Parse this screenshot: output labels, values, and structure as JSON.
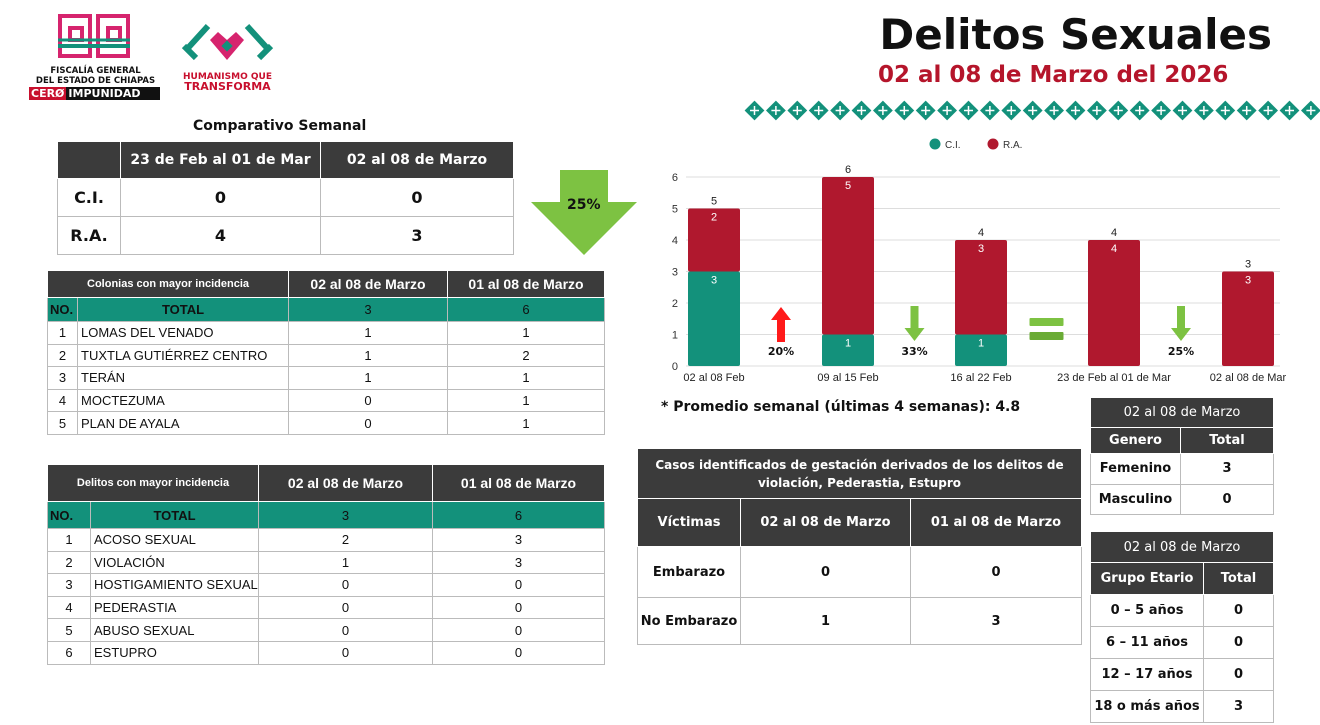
{
  "header": {
    "title": "Delitos Sexuales",
    "subtitle": "02 al 08 de Marzo del 2026",
    "logo1": [
      "FISCALÍA GENERAL",
      "DEL ESTADO DE CHIAPAS"
    ],
    "logo1_cero": "CERØ",
    "logo1_imp": "IMPUNIDAD",
    "logo2": [
      "HUMANISMO QUE",
      "TRANSFORMA"
    ]
  },
  "colors": {
    "teal": "#13917b",
    "red": "#b0182e",
    "dark": "#3b3b3b",
    "green": "#7dc242"
  },
  "comparativo": {
    "title": "Comparativo Semanal",
    "headers": [
      "",
      "23 de Feb al 01 de Mar",
      "02 al 08 de Marzo"
    ],
    "rows": [
      [
        "C.I.",
        "0",
        "0"
      ],
      [
        "R.A.",
        "4",
        "3"
      ]
    ],
    "change": "25%"
  },
  "colonias": {
    "headers": [
      "Colonias con mayor incidencia",
      "02 al 08 de Marzo",
      "01 al 08 de Marzo"
    ],
    "total": [
      "NO.",
      "TOTAL",
      "3",
      "6"
    ],
    "rows": [
      [
        "1",
        "LOMAS DEL VENADO",
        "1",
        "1"
      ],
      [
        "2",
        "TUXTLA GUTIÉRREZ CENTRO",
        "1",
        "2"
      ],
      [
        "3",
        "TERÁN",
        "1",
        "1"
      ],
      [
        "4",
        "MOCTEZUMA",
        "0",
        "1"
      ],
      [
        "5",
        "PLAN DE AYALA",
        "0",
        "1"
      ]
    ]
  },
  "delitos": {
    "headers": [
      "Delitos con mayor incidencia",
      "02 al 08 de Marzo",
      "01 al 08 de Marzo"
    ],
    "total": [
      "NO.",
      "TOTAL",
      "3",
      "6"
    ],
    "rows": [
      [
        "1",
        "ACOSO SEXUAL",
        "2",
        "3"
      ],
      [
        "2",
        "VIOLACIÓN",
        "1",
        "3"
      ],
      [
        "3",
        "HOSTIGAMIENTO SEXUAL",
        "0",
        "0"
      ],
      [
        "4",
        "PEDERASTIA",
        "0",
        "0"
      ],
      [
        "5",
        "ABUSO SEXUAL",
        "0",
        "0"
      ],
      [
        "6",
        "ESTUPRO",
        "0",
        "0"
      ]
    ]
  },
  "promedio": "* Promedio semanal (últimas 4 semanas): 4.8",
  "casos": {
    "title": "Casos identificados de gestación derivados de los delitos de violación, Pederastia, Estupro",
    "headers": [
      "Víctimas",
      "02 al 08 de Marzo",
      "01 al 08 de Marzo"
    ],
    "rows": [
      [
        "Embarazo",
        "0",
        "0"
      ],
      [
        "No Embarazo",
        "1",
        "3"
      ]
    ]
  },
  "genero": {
    "title": "02 al 08 de Marzo",
    "headers": [
      "Genero",
      "Total"
    ],
    "rows": [
      [
        "Femenino",
        "3"
      ],
      [
        "Masculino",
        "0"
      ]
    ]
  },
  "edad": {
    "title": "02 al 08 de Marzo",
    "headers": [
      "Grupo Etario",
      "Total"
    ],
    "rows": [
      [
        "0 – 5 años",
        "0"
      ],
      [
        "6 – 11 años",
        "0"
      ],
      [
        "12 – 17 años",
        "0"
      ],
      [
        "18 o más años",
        "3"
      ]
    ]
  },
  "chart_data": {
    "type": "bar",
    "stacked": true,
    "categories": [
      "02 al 08 Feb",
      "09 al 15 Feb",
      "16 al 22 Feb",
      "23 de Feb al 01 de Mar",
      "02 al 08 de Mar"
    ],
    "series": [
      {
        "name": "C.I.",
        "values": [
          3,
          1,
          1,
          0,
          0
        ],
        "color": "#13917b"
      },
      {
        "name": "R.A.",
        "values": [
          2,
          5,
          3,
          4,
          3
        ],
        "color": "#b0182e"
      }
    ],
    "totals": [
      5,
      6,
      4,
      4,
      3
    ],
    "ylim": [
      0,
      6
    ],
    "yticks": [
      0,
      1,
      2,
      3,
      4,
      5,
      6
    ],
    "legend": "top-center",
    "grid": true,
    "annotations": [
      {
        "between": [
          0,
          1
        ],
        "direction": "up",
        "label": "20%"
      },
      {
        "between": [
          1,
          2
        ],
        "direction": "down",
        "label": "33%"
      },
      {
        "between": [
          2,
          3
        ],
        "direction": "equal",
        "label": ""
      },
      {
        "between": [
          3,
          4
        ],
        "direction": "down",
        "label": "25%"
      }
    ]
  }
}
